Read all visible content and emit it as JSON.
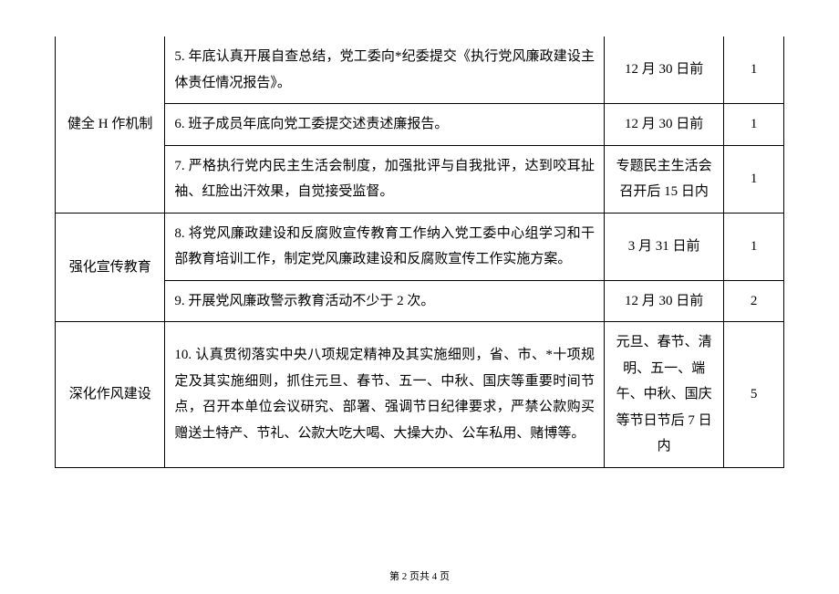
{
  "table": {
    "rows": [
      {
        "category": "健全 H 作机制",
        "category_rowspan": 3,
        "content": "5. 年底认真开展自查总结，党工委向*纪委提交《执行党风廉政建设主体责任情况报告》。",
        "deadline": "12 月 30 日前",
        "score": "1"
      },
      {
        "content": "6. 班子成员年底向党工委提交述责述廉报告。",
        "deadline": "12 月 30 日前",
        "score": "1"
      },
      {
        "content": "7. 严格执行党内民主生活会制度，加强批评与自我批评，达到咬耳扯袖、红脸出汗效果，自觉接受监督。",
        "deadline": "专题民主生活会召开后 15 日内",
        "score": "1"
      },
      {
        "category": "强化宣传教育",
        "category_rowspan": 2,
        "content": "8. 将党风廉政建设和反腐败宣传教育工作纳入党工委中心组学习和干部教育培训工作，制定党风廉政建设和反腐败宣传工作实施方案。",
        "deadline": "3 月 31 日前",
        "score": "1"
      },
      {
        "content": "9. 开展党风廉政警示教育活动不少于 2 次。",
        "deadline": "12 月 30 日前",
        "score": "2"
      },
      {
        "category": "深化作风建设",
        "category_rowspan": 1,
        "content": "10. 认真贯彻落实中央八项规定精神及其实施细则，省、市、*十项规定及其实施细则，抓住元旦、春节、五一、中秋、国庆等重要时间节点，召开本单位会议研究、部署、强调节日纪律要求，严禁公款购买赠送土特产、节礼、公款大吃大喝、大操大办、公车私用、赌博等。",
        "deadline": "元旦、春节、清明、五一、端午、中秋、国庆等节日节后 7 日内",
        "score": "5"
      }
    ]
  },
  "footer": "第 2 页共 4 页"
}
